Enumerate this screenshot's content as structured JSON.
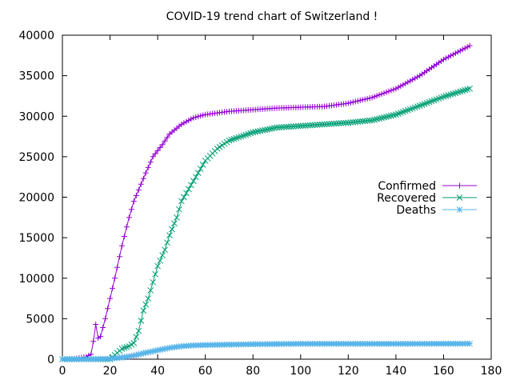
{
  "chart_data": {
    "type": "line",
    "title": "COVID-19 trend chart of Switzerland !",
    "xlabel": "",
    "ylabel": "",
    "xlim": [
      0,
      180
    ],
    "ylim": [
      0,
      40000
    ],
    "x_ticks": [
      0,
      20,
      40,
      60,
      80,
      100,
      120,
      140,
      160,
      180
    ],
    "y_ticks": [
      0,
      5000,
      10000,
      15000,
      20000,
      25000,
      30000,
      35000,
      40000
    ],
    "grid": false,
    "legend_position": "right",
    "series": [
      {
        "name": "Confirmed",
        "color": "#9400d3",
        "marker": "plus",
        "points": [
          [
            0,
            0
          ],
          [
            5,
            50
          ],
          [
            10,
            300
          ],
          [
            12,
            600
          ],
          [
            13,
            2200
          ],
          [
            14,
            4300
          ],
          [
            15,
            2600
          ],
          [
            16,
            2800
          ],
          [
            18,
            5000
          ],
          [
            20,
            7500
          ],
          [
            22,
            10000
          ],
          [
            25,
            14000
          ],
          [
            28,
            17500
          ],
          [
            30,
            19500
          ],
          [
            35,
            23000
          ],
          [
            38,
            25000
          ],
          [
            42,
            26500
          ],
          [
            45,
            27800
          ],
          [
            50,
            29000
          ],
          [
            55,
            29800
          ],
          [
            60,
            30200
          ],
          [
            70,
            30600
          ],
          [
            80,
            30800
          ],
          [
            90,
            31000
          ],
          [
            100,
            31100
          ],
          [
            110,
            31200
          ],
          [
            120,
            31600
          ],
          [
            130,
            32300
          ],
          [
            140,
            33400
          ],
          [
            150,
            35000
          ],
          [
            160,
            37000
          ],
          [
            171,
            38700
          ]
        ]
      },
      {
        "name": "Recovered",
        "color": "#009e73",
        "marker": "cross",
        "points": [
          [
            0,
            0
          ],
          [
            10,
            0
          ],
          [
            20,
            0
          ],
          [
            25,
            1300
          ],
          [
            28,
            1600
          ],
          [
            30,
            2000
          ],
          [
            32,
            3500
          ],
          [
            34,
            6000
          ],
          [
            36,
            7500
          ],
          [
            38,
            9500
          ],
          [
            40,
            11500
          ],
          [
            43,
            13500
          ],
          [
            45,
            15300
          ],
          [
            48,
            17500
          ],
          [
            50,
            19500
          ],
          [
            55,
            22000
          ],
          [
            60,
            24500
          ],
          [
            65,
            26000
          ],
          [
            70,
            27000
          ],
          [
            80,
            28000
          ],
          [
            90,
            28600
          ],
          [
            100,
            28800
          ],
          [
            110,
            29000
          ],
          [
            120,
            29200
          ],
          [
            130,
            29500
          ],
          [
            140,
            30200
          ],
          [
            150,
            31300
          ],
          [
            160,
            32400
          ],
          [
            171,
            33400
          ]
        ]
      },
      {
        "name": "Deaths",
        "color": "#56b4e9",
        "marker": "star",
        "points": [
          [
            0,
            0
          ],
          [
            10,
            0
          ],
          [
            20,
            50
          ],
          [
            25,
            200
          ],
          [
            30,
            450
          ],
          [
            35,
            800
          ],
          [
            40,
            1100
          ],
          [
            45,
            1400
          ],
          [
            50,
            1600
          ],
          [
            55,
            1700
          ],
          [
            60,
            1750
          ],
          [
            70,
            1800
          ],
          [
            80,
            1850
          ],
          [
            100,
            1900
          ],
          [
            120,
            1900
          ],
          [
            140,
            1900
          ],
          [
            171,
            1920
          ]
        ]
      }
    ]
  }
}
